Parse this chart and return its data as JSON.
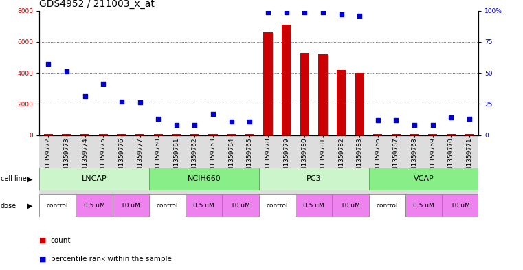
{
  "title": "GDS4952 / 211003_x_at",
  "samples": [
    "GSM1359772",
    "GSM1359773",
    "GSM1359774",
    "GSM1359775",
    "GSM1359776",
    "GSM1359777",
    "GSM1359760",
    "GSM1359761",
    "GSM1359762",
    "GSM1359763",
    "GSM1359764",
    "GSM1359765",
    "GSM1359778",
    "GSM1359779",
    "GSM1359780",
    "GSM1359781",
    "GSM1359782",
    "GSM1359783",
    "GSM1359766",
    "GSM1359767",
    "GSM1359768",
    "GSM1359769",
    "GSM1359770",
    "GSM1359771"
  ],
  "counts": [
    50,
    80,
    60,
    70,
    55,
    65,
    60,
    70,
    65,
    80,
    75,
    70,
    6600,
    7100,
    5300,
    5200,
    4200,
    4000,
    65,
    80,
    75,
    60,
    70,
    80
  ],
  "percentiles": [
    57,
    51,
    31,
    41,
    27,
    26,
    13,
    8,
    8,
    17,
    11,
    11,
    99,
    99,
    99,
    99,
    97,
    96,
    12,
    12,
    8,
    8,
    14,
    13
  ],
  "cell_lines": [
    {
      "label": "LNCAP",
      "start": 0,
      "end": 6,
      "color": "#ccf5cc"
    },
    {
      "label": "NCIH660",
      "start": 6,
      "end": 12,
      "color": "#88ee88"
    },
    {
      "label": "PC3",
      "start": 12,
      "end": 18,
      "color": "#ccf5cc"
    },
    {
      "label": "VCAP",
      "start": 18,
      "end": 24,
      "color": "#88ee88"
    }
  ],
  "dose_groups": [
    {
      "label": "control",
      "start": 0,
      "end": 2,
      "color": "#ffffff"
    },
    {
      "label": "0.5 uM",
      "start": 2,
      "end": 4,
      "color": "#ee82ee"
    },
    {
      "label": "10 uM",
      "start": 4,
      "end": 6,
      "color": "#ee82ee"
    },
    {
      "label": "control",
      "start": 6,
      "end": 8,
      "color": "#ffffff"
    },
    {
      "label": "0.5 uM",
      "start": 8,
      "end": 10,
      "color": "#ee82ee"
    },
    {
      "label": "10 uM",
      "start": 10,
      "end": 12,
      "color": "#ee82ee"
    },
    {
      "label": "control",
      "start": 12,
      "end": 14,
      "color": "#ffffff"
    },
    {
      "label": "0.5 uM",
      "start": 14,
      "end": 16,
      "color": "#ee82ee"
    },
    {
      "label": "10 uM",
      "start": 16,
      "end": 18,
      "color": "#ee82ee"
    },
    {
      "label": "control",
      "start": 18,
      "end": 20,
      "color": "#ffffff"
    },
    {
      "label": "0.5 uM",
      "start": 20,
      "end": 22,
      "color": "#ee82ee"
    },
    {
      "label": "10 uM",
      "start": 22,
      "end": 24,
      "color": "#ee82ee"
    }
  ],
  "ylim_left": [
    0,
    8000
  ],
  "ylim_right": [
    0,
    100
  ],
  "yticks_left": [
    0,
    2000,
    4000,
    6000,
    8000
  ],
  "yticks_right": [
    0,
    25,
    50,
    75,
    100
  ],
  "ytick_labels_right": [
    "0",
    "25",
    "50",
    "75",
    "100%"
  ],
  "bar_color": "#cc0000",
  "dot_color": "#0000cc",
  "count_color": "#cc0000",
  "pct_color": "#0000cc",
  "title_fontsize": 10,
  "tick_fontsize": 6.5,
  "band_fontsize": 8,
  "legend_fontsize": 7.5,
  "bg_color": "#ffffff",
  "grid_color": "black",
  "grid_lw": 0.5,
  "grid_ls": ":"
}
